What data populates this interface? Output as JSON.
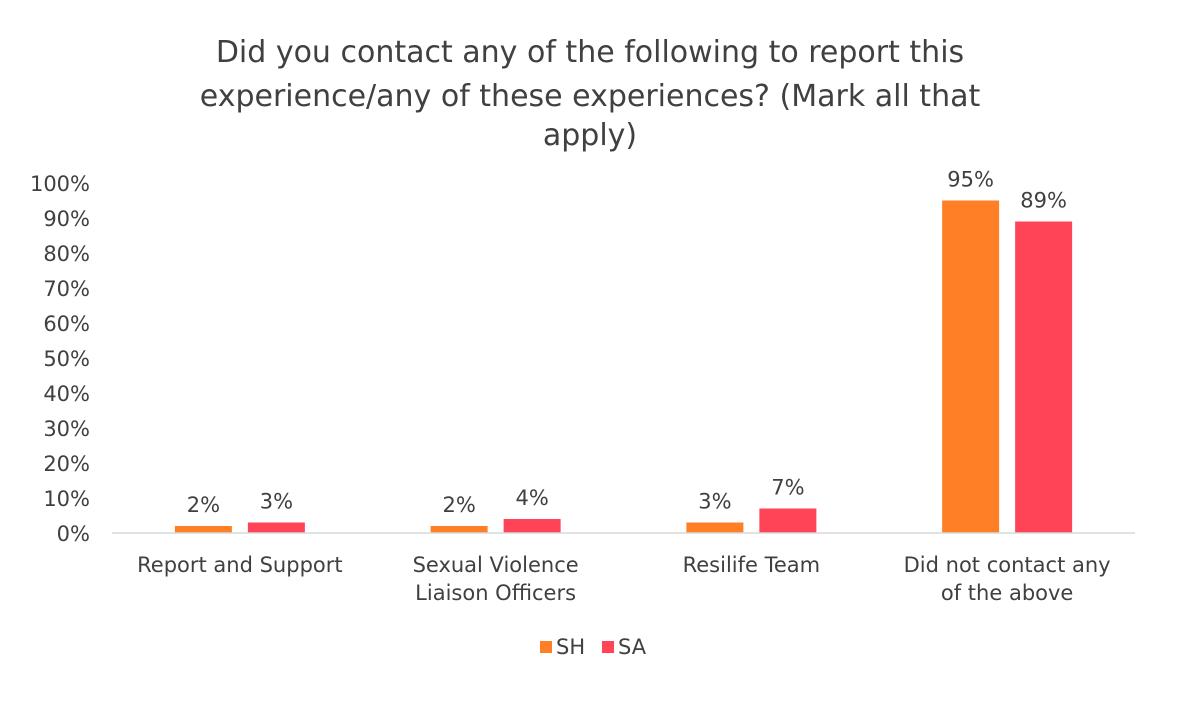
{
  "chart_data": {
    "type": "bar",
    "title_lines": [
      "Did you contact any of the following to report this",
      "experience/any of these experiences? (Mark all that",
      "apply)"
    ],
    "categories": [
      [
        "Report and Support"
      ],
      [
        "Sexual Violence",
        "Liaison Officers"
      ],
      [
        "Resilife Team"
      ],
      [
        "Did not contact any",
        "of the above"
      ]
    ],
    "series": [
      {
        "name": "SH",
        "color": "#FF7F27",
        "values": [
          2,
          2,
          3,
          95
        ],
        "labels": [
          "2%",
          "2%",
          "3%",
          "95%"
        ]
      },
      {
        "name": "SA",
        "color": "#FF4457",
        "values": [
          3,
          4,
          7,
          89
        ],
        "labels": [
          "3%",
          "4%",
          "7%",
          "89%"
        ]
      }
    ],
    "y_ticks": [
      "0%",
      "10%",
      "20%",
      "30%",
      "40%",
      "50%",
      "60%",
      "70%",
      "80%",
      "90%",
      "100%"
    ],
    "ylim": [
      0,
      100
    ],
    "grid": false,
    "legend_position": "bottom"
  }
}
